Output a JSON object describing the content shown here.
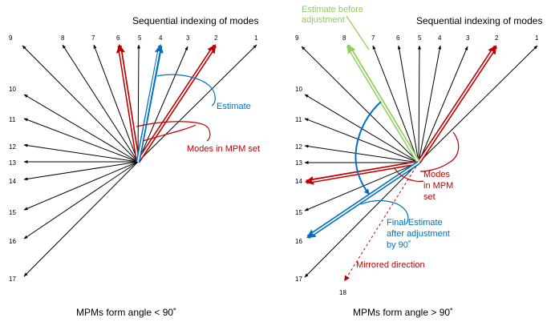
{
  "colors": {
    "black": "#000000",
    "red": "#c00000",
    "blue": "#0070c0",
    "green": "#8fce58"
  },
  "left_panel": {
    "heading": "Sequential indexing of modes",
    "mode_labels": [
      "1",
      "2",
      "3",
      "4",
      "5",
      "6",
      "7",
      "8",
      "9",
      "10",
      "11",
      "12",
      "13",
      "14",
      "15",
      "16",
      "17"
    ],
    "estimate_label": "Estimate",
    "mpm_label": "Modes in MPM set",
    "caption": "MPMs form angle < 90˚",
    "mpm_modes": [
      "2",
      "6"
    ],
    "estimate_mode": "4"
  },
  "right_panel": {
    "heading": "Sequential indexing of modes",
    "mode_labels": [
      "1",
      "2",
      "3",
      "4",
      "5",
      "6",
      "7",
      "8",
      "9",
      "10",
      "11",
      "12",
      "13",
      "14",
      "15",
      "16",
      "17"
    ],
    "extra_label": "18",
    "estimate_before_label_1": "Estimate before",
    "estimate_before_label_2": "adjustment",
    "mpm_label_1": "Modes",
    "mpm_label_2": "in MPM",
    "mpm_label_3": "set",
    "final_label_1": "Final Estimate",
    "final_label_2": "after adjustment",
    "final_label_3": "by 90˚",
    "mirrored_label": "Mirrored direction",
    "caption": "MPMs form angle > 90˚",
    "mpm_modes": [
      "2",
      "14"
    ],
    "estimate_before_mode": "8",
    "final_mode": "16"
  }
}
